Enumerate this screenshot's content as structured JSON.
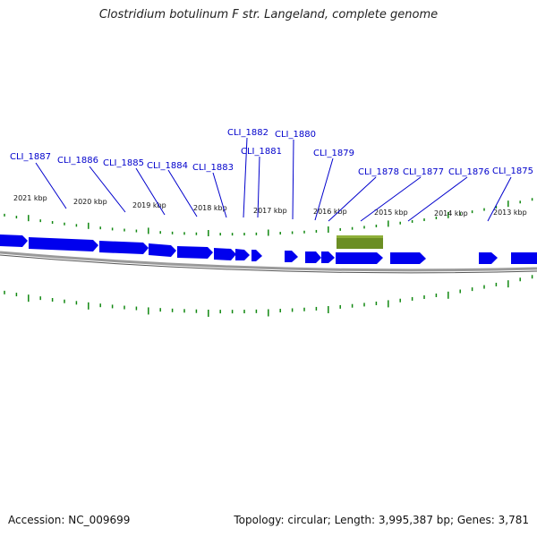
{
  "title": "Clostridium botulinum F str. Langeland, complete genome",
  "footer": {
    "accession": "Accession: NC_009699",
    "topology": "Topology: circular; Length: 3,995,387 bp; Genes: 3,781"
  },
  "colors": {
    "gene": "#0000ee",
    "feature": "#6b8e23",
    "tick": "#118811",
    "label": "#0000cc",
    "backbone": "#888888"
  },
  "scale_labels": [
    "2021 kbp",
    "2020 kbp",
    "2019 kbp",
    "2018 kbp",
    "2017 kbp",
    "2016 kbp",
    "2015 kbp",
    "2014 kbp",
    "2013 kbp"
  ],
  "gene_labels": [
    "CLI_1887",
    "CLI_1886",
    "CLI_1885",
    "CLI_1884",
    "CLI_1883",
    "CLI_1882",
    "CLI_1881",
    "CLI_1880",
    "CLI_1879",
    "CLI_1878",
    "CLI_1877",
    "CLI_1876",
    "CLI_1875"
  ]
}
